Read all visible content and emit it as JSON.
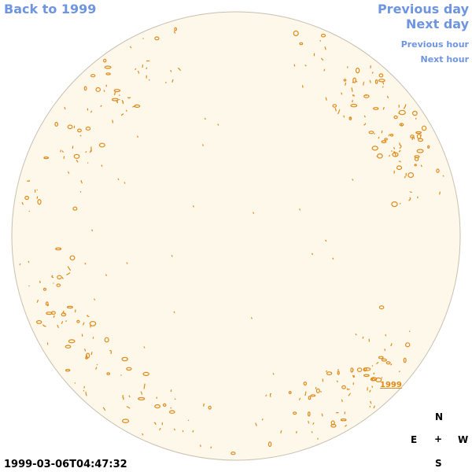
{
  "nav": {
    "back": "Back to 1999",
    "prev_day": "Previous day",
    "next_day": "Next day",
    "prev_hour": "Previous hour",
    "next_hour": "Next hour"
  },
  "timestamp": "1999-03-06T04:47:32",
  "year_label": "1999",
  "compass": {
    "north": "N",
    "south": "S",
    "east": "E",
    "west": "W",
    "center": "+"
  },
  "colors": {
    "disk_fill": "#fdf8ea",
    "disk_stroke": "#c8c0b0",
    "contour": "#e08a1a",
    "link": "#6f95e0"
  }
}
